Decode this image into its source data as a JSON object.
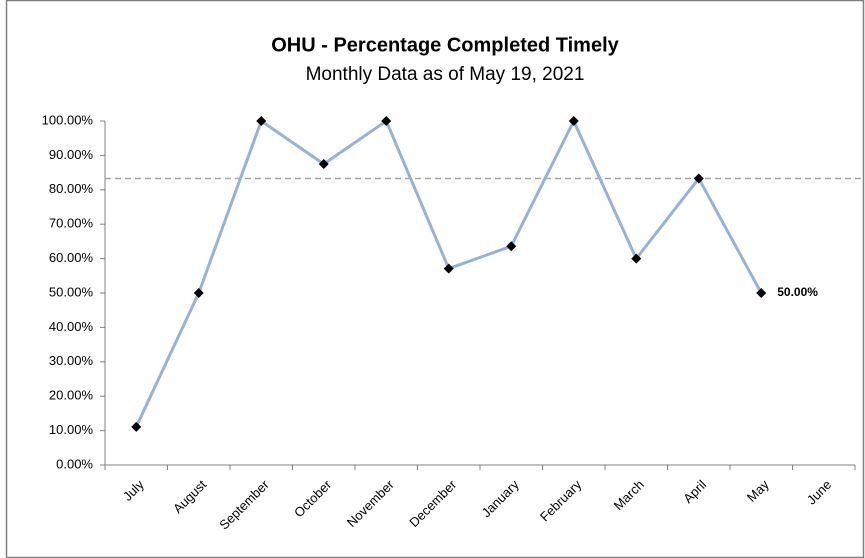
{
  "chart_data": {
    "type": "line",
    "title": "OHU - Percentage Completed Timely",
    "subtitle": "Monthly Data as of May 19, 2021",
    "categories": [
      "July",
      "August",
      "September",
      "October",
      "November",
      "December",
      "January",
      "February",
      "March",
      "April",
      "May",
      "June"
    ],
    "series": [
      {
        "name": "Percentage Completed Timely",
        "color": "#95b3d7",
        "values": [
          11.1,
          50,
          100,
          87.5,
          100,
          57.1,
          63.6,
          100,
          60,
          83.3,
          50,
          null
        ],
        "value_labels": [
          null,
          null,
          null,
          null,
          null,
          null,
          null,
          null,
          null,
          null,
          "50.00%",
          null
        ]
      }
    ],
    "reference_line": 83.3,
    "ylim": [
      0,
      100
    ],
    "yticks": [
      {
        "value": 0,
        "label": "0.00%"
      },
      {
        "value": 10,
        "label": "10.00%"
      },
      {
        "value": 20,
        "label": "20.00%"
      },
      {
        "value": 30,
        "label": "30.00%"
      },
      {
        "value": 40,
        "label": "40.00%"
      },
      {
        "value": 50,
        "label": "50.00%"
      },
      {
        "value": 60,
        "label": "60.00%"
      },
      {
        "value": 70,
        "label": "70.00%"
      },
      {
        "value": 80,
        "label": "80.00%"
      },
      {
        "value": 90,
        "label": "90.00%"
      },
      {
        "value": 100,
        "label": "100.00%"
      }
    ]
  }
}
